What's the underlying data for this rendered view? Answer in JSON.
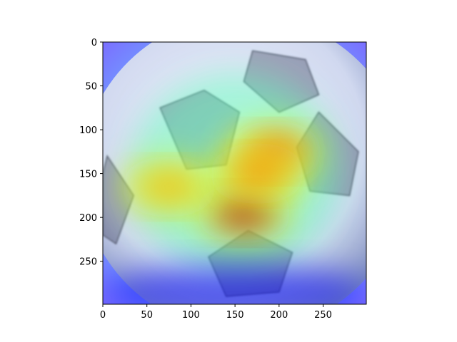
{
  "figure": {
    "image_subject": "soccer ball with heatmap overlay",
    "background_color": "#ffffff",
    "axis_color": "#000000"
  },
  "chart_data": {
    "type": "heatmap",
    "title": "",
    "xlabel": "",
    "ylabel": "",
    "xlim": [
      0,
      299
    ],
    "ylim": [
      299,
      0
    ],
    "y_inverted": true,
    "grid": false,
    "legend": "none",
    "x_ticks": [
      0,
      50,
      100,
      150,
      200,
      250
    ],
    "y_ticks": [
      0,
      50,
      100,
      150,
      200,
      250
    ],
    "x_tick_labels": [
      "0",
      "50",
      "100",
      "150",
      "200",
      "250"
    ],
    "y_tick_labels": [
      "0",
      "50",
      "100",
      "150",
      "200",
      "250"
    ],
    "colormap": "jet",
    "hotspots": [
      {
        "x": 160,
        "y": 195,
        "intensity": 0.95
      },
      {
        "x": 195,
        "y": 125,
        "intensity": 0.8
      },
      {
        "x": 75,
        "y": 165,
        "intensity": 0.7
      },
      {
        "x": 175,
        "y": 150,
        "intensity": 0.75
      }
    ]
  }
}
